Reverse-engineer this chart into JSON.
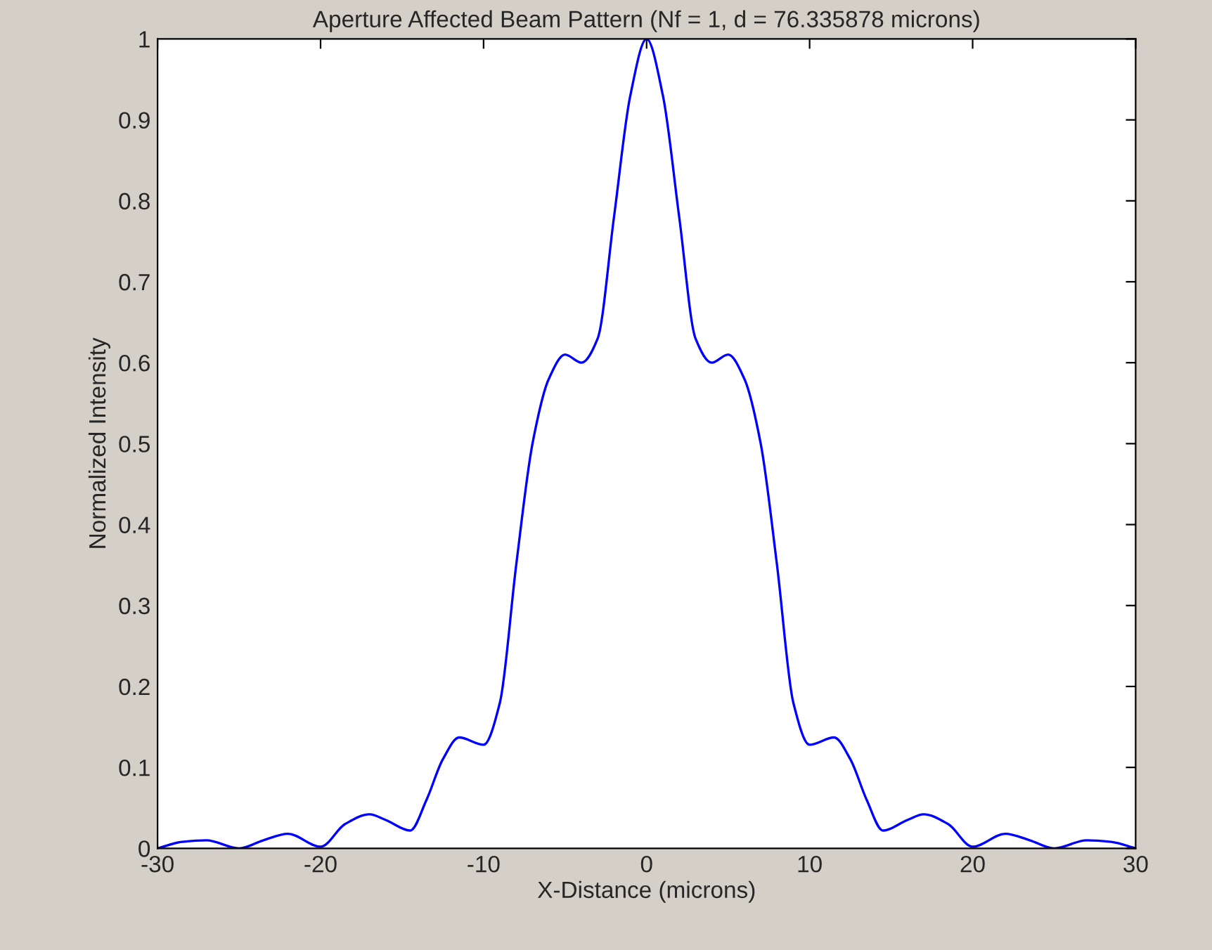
{
  "chart_data": {
    "type": "line",
    "title": "Aperture Affected Beam Pattern (Nf = 1, d = 76.335878 microns)",
    "xlabel": "X-Distance (microns)",
    "ylabel": "Normalized Intensity",
    "x": [
      -30,
      -28.5,
      -27,
      -25,
      -23.5,
      -22,
      -20,
      -18.5,
      -17,
      -16,
      -14.5,
      -13.5,
      -12.5,
      -11.5,
      -10,
      -9,
      -8,
      -7,
      -6,
      -5,
      -4,
      -3,
      -2,
      -1,
      0,
      1,
      2,
      3,
      4,
      5,
      6,
      7,
      8,
      9,
      10,
      11.5,
      12.5,
      13.5,
      14.5,
      16,
      17,
      18.5,
      20,
      22,
      23.5,
      25,
      27,
      28.5,
      30
    ],
    "series": [
      {
        "color": "#0000ff",
        "values": [
          0.0,
          0.008,
          0.01,
          0.0,
          0.01,
          0.018,
          0.002,
          0.03,
          0.042,
          0.035,
          0.022,
          0.06,
          0.11,
          0.137,
          0.128,
          0.18,
          0.35,
          0.5,
          0.58,
          0.61,
          0.6,
          0.63,
          0.78,
          0.93,
          1.0,
          0.93,
          0.78,
          0.63,
          0.6,
          0.61,
          0.58,
          0.5,
          0.35,
          0.18,
          0.128,
          0.137,
          0.11,
          0.06,
          0.022,
          0.035,
          0.042,
          0.03,
          0.002,
          0.018,
          0.01,
          0.0,
          0.01,
          0.008,
          0.0
        ]
      }
    ],
    "xlim": [
      -30,
      30
    ],
    "ylim": [
      0,
      1
    ],
    "xticks": [
      -30,
      -20,
      -10,
      0,
      10,
      20,
      30
    ],
    "yticks": [
      0,
      0.1,
      0.2,
      0.3,
      0.4,
      0.5,
      0.6,
      0.7,
      0.8,
      0.9,
      1
    ],
    "grid": false,
    "marker": "none",
    "line_style": "solid"
  }
}
